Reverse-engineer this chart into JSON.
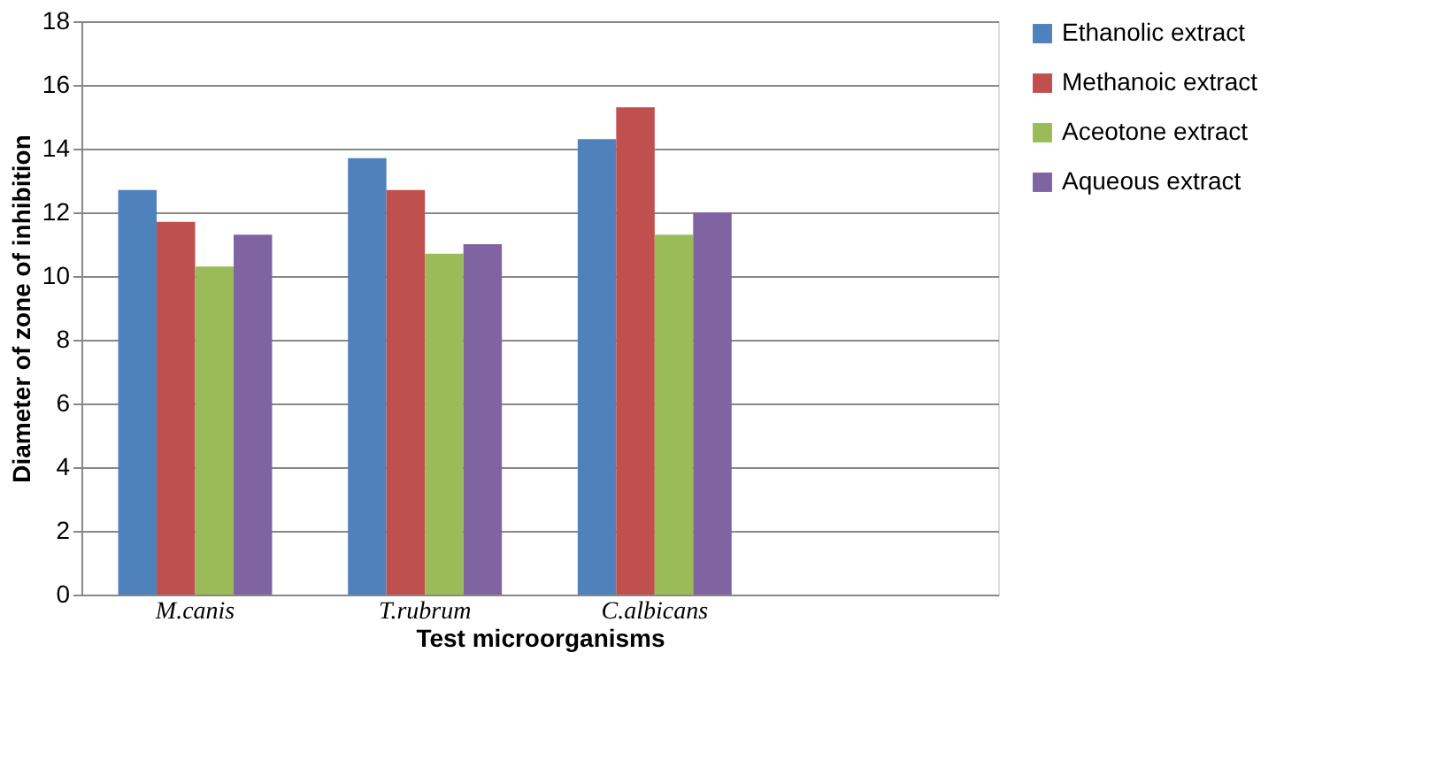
{
  "chart_data": {
    "type": "bar",
    "xlabel": "Test microorganisms",
    "ylabel": "Diameter of zone of inhibition",
    "categories": [
      "M.canis",
      "T.rubrum",
      "C.albicans",
      null
    ],
    "series": [
      {
        "name": "Ethanolic extract",
        "color": "#4f81bd",
        "values": [
          12.7,
          13.7,
          14.3,
          null
        ]
      },
      {
        "name": "Methanoic extract",
        "color": "#c0504d",
        "values": [
          11.7,
          12.7,
          15.3,
          null
        ]
      },
      {
        "name": "Aceotone extract",
        "color": "#9bbb59",
        "values": [
          10.3,
          10.7,
          11.3,
          null
        ]
      },
      {
        "name": "Aqueous extract",
        "color": "#8064a2",
        "values": [
          11.3,
          11.0,
          12.0,
          null
        ]
      }
    ],
    "ylim": [
      0,
      18
    ],
    "yticks": [
      0,
      2,
      4,
      6,
      8,
      10,
      12,
      14,
      16,
      18
    ],
    "grid": "y",
    "legend": "right"
  }
}
